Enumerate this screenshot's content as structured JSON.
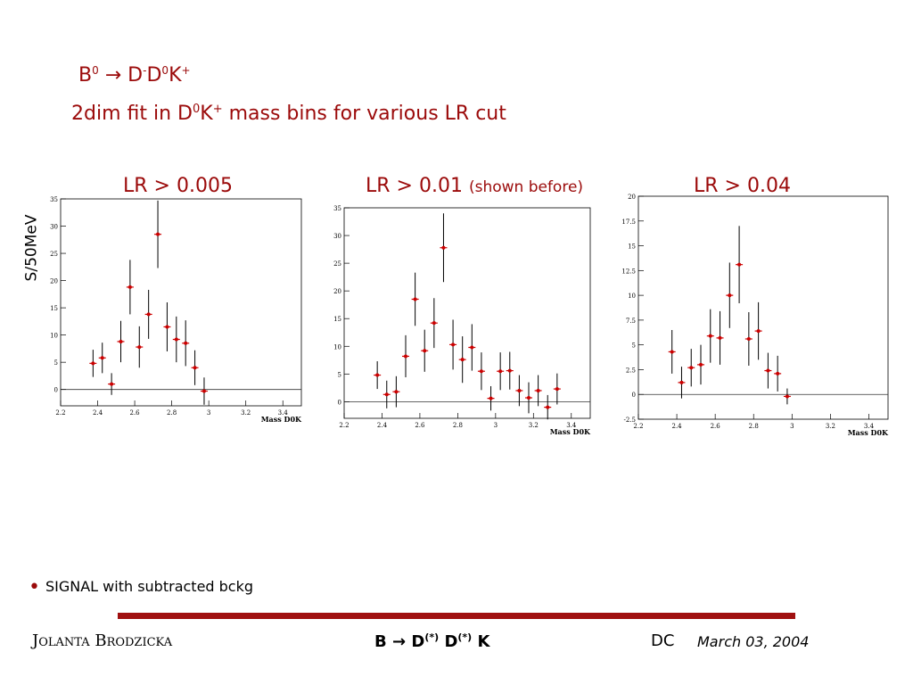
{
  "slide": {
    "title_b": "B",
    "title_b_sup": "0",
    "title_arrow": "→",
    "title_d": "D",
    "title_d_sup": "-",
    "title_d0": "D",
    "title_d0_sup": "0",
    "title_k": "K",
    "title_k_sup": "+",
    "subtitle_pre": "2dim fit in D",
    "subtitle_sup0": "0",
    "subtitle_k": "K",
    "subtitle_supk": "+",
    "subtitle_post": " mass bins for various LR cut",
    "y_axis_label": "S/50MeV",
    "cut_labels": [
      "LR > 0.005",
      "LR > 0.01",
      "LR > 0.04"
    ],
    "cut_note": "(shown before)",
    "bullet_text": "SIGNAL with subtracted bckg",
    "footer_author": "Jolanta Brodzicka",
    "footer_topic_b": "B",
    "footer_topic_arrow": "→",
    "footer_topic_d1": "D",
    "footer_topic_star1": "(*)",
    "footer_topic_d2": "D",
    "footer_topic_star2": "(*)",
    "footer_topic_k": "K",
    "footer_dc": "DC",
    "footer_date": "March 03,  2004"
  },
  "colors": {
    "accent": "#9b0a0a",
    "rule": "#a01010",
    "marker": "#cc0000"
  },
  "chart_data": [
    {
      "type": "scatter",
      "title": "LR > 0.005",
      "xlabel": "Mass D0K",
      "ylabel": "",
      "xlim": [
        2.2,
        3.5
      ],
      "ylim": [
        -3,
        35
      ],
      "xticks": [
        "2.2",
        "2.4",
        "2.6",
        "2.8",
        "3",
        "3.2",
        "3.4"
      ],
      "xtick_values": [
        2.2,
        2.4,
        2.6,
        2.8,
        3.0,
        3.2,
        3.4
      ],
      "yticks": [
        "0",
        "5",
        "10",
        "15",
        "20",
        "25",
        "30",
        "35"
      ],
      "ytick_values": [
        0,
        5,
        10,
        15,
        20,
        25,
        30,
        35
      ],
      "x": [
        2.375,
        2.425,
        2.475,
        2.525,
        2.575,
        2.625,
        2.675,
        2.725,
        2.775,
        2.825,
        2.875,
        2.925,
        2.975
      ],
      "y": [
        4.8,
        5.8,
        1.0,
        8.8,
        18.8,
        7.8,
        13.8,
        28.5,
        11.5,
        9.2,
        8.5,
        4.0,
        -0.3
      ],
      "err": [
        2.5,
        2.8,
        2.0,
        3.8,
        5.0,
        3.8,
        4.5,
        6.2,
        4.5,
        4.2,
        4.2,
        3.2,
        2.5
      ]
    },
    {
      "type": "scatter",
      "title": "LR > 0.01",
      "xlabel": "Mass D0K",
      "ylabel": "",
      "xlim": [
        2.2,
        3.5
      ],
      "ylim": [
        -3,
        35
      ],
      "xticks": [
        "2.2",
        "2.4",
        "2.6",
        "2.8",
        "3",
        "3.2",
        "3.4"
      ],
      "xtick_values": [
        2.2,
        2.4,
        2.6,
        2.8,
        3.0,
        3.2,
        3.4
      ],
      "yticks": [
        "0",
        "5",
        "10",
        "15",
        "20",
        "25",
        "30",
        "35"
      ],
      "ytick_values": [
        0,
        5,
        10,
        15,
        20,
        25,
        30,
        35
      ],
      "x": [
        2.375,
        2.425,
        2.475,
        2.525,
        2.575,
        2.625,
        2.675,
        2.725,
        2.775,
        2.825,
        2.875,
        2.925,
        2.975,
        3.025,
        3.075,
        3.125,
        3.175,
        3.225,
        3.275,
        3.325
      ],
      "y": [
        4.8,
        1.3,
        1.8,
        8.2,
        18.5,
        9.2,
        14.2,
        27.8,
        10.3,
        7.6,
        9.8,
        5.5,
        0.6,
        5.5,
        5.6,
        2.0,
        0.7,
        2.0,
        -1.0,
        2.3
      ],
      "err": [
        2.5,
        2.5,
        2.8,
        3.8,
        4.8,
        3.8,
        4.5,
        6.2,
        4.5,
        4.2,
        4.2,
        3.4,
        2.2,
        3.4,
        3.4,
        2.8,
        2.8,
        2.8,
        2.2,
        2.8
      ]
    },
    {
      "type": "scatter",
      "title": "LR > 0.04",
      "xlabel": "Mass D0K",
      "ylabel": "",
      "xlim": [
        2.2,
        3.5
      ],
      "ylim": [
        -2.5,
        20
      ],
      "xticks": [
        "2.2",
        "2.4",
        "2.6",
        "2.8",
        "3",
        "3.2",
        "3.4"
      ],
      "xtick_values": [
        2.2,
        2.4,
        2.6,
        2.8,
        3.0,
        3.2,
        3.4
      ],
      "yticks": [
        "-2.5",
        "0",
        "2.5",
        "5",
        "7.5",
        "10",
        "12.5",
        "15",
        "17.5",
        "20"
      ],
      "ytick_values": [
        -2.5,
        0,
        2.5,
        5,
        7.5,
        10,
        12.5,
        15,
        17.5,
        20
      ],
      "x": [
        2.375,
        2.425,
        2.475,
        2.525,
        2.575,
        2.625,
        2.675,
        2.725,
        2.775,
        2.825,
        2.875,
        2.925,
        2.975
      ],
      "y": [
        4.3,
        1.2,
        2.7,
        3.0,
        5.9,
        5.7,
        10.0,
        13.1,
        5.6,
        6.4,
        2.4,
        2.1,
        -0.2
      ],
      "err": [
        2.2,
        1.6,
        1.9,
        2.0,
        2.7,
        2.7,
        3.3,
        3.9,
        2.7,
        2.9,
        1.8,
        1.8,
        0.8
      ]
    }
  ]
}
